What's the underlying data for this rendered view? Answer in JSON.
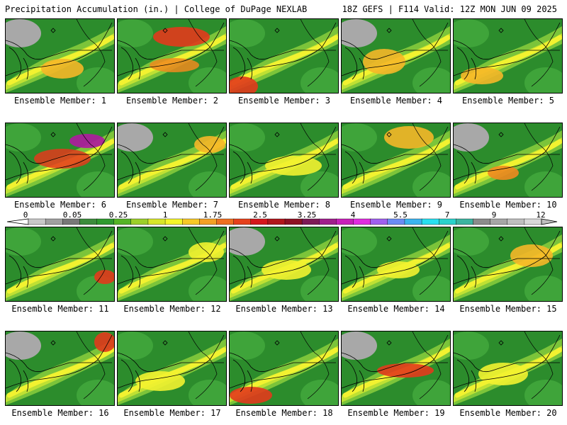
{
  "header": {
    "title_left": "Precipitation Accumulation (in.) | College of DuPage NEXLAB",
    "title_right": "18Z GEFS | F114 Valid: 12Z MON JUN 09 2025"
  },
  "legend": {
    "ticks": [
      "0",
      "0.05",
      "0.25",
      "1",
      "1.75",
      "2.5",
      "3.25",
      "4",
      "5.5",
      "7",
      "9",
      "12"
    ],
    "colors": [
      "#c8c8c8",
      "#a0a0a0",
      "#787878",
      "#3c8c3c",
      "#2f9a2f",
      "#55b427",
      "#9ccf2a",
      "#d8e62a",
      "#f5f52a",
      "#f7c927",
      "#f4a026",
      "#ef6f20",
      "#e6411c",
      "#d4161c",
      "#b0161c",
      "#8e1124",
      "#7e1a57",
      "#a01e8c",
      "#c71fb9",
      "#e02ce0",
      "#a060f0",
      "#6b8cf5",
      "#3cb4f0",
      "#28e0f0",
      "#2ad2cc",
      "#3cb4a0",
      "#8c8c8c",
      "#a6a6a6",
      "#bfbfbf",
      "#d8d8d8"
    ]
  },
  "members": [
    {
      "label": "Ensemble Member: 1"
    },
    {
      "label": "Ensemble Member: 2"
    },
    {
      "label": "Ensemble Member: 3"
    },
    {
      "label": "Ensemble Member: 4"
    },
    {
      "label": "Ensemble Member: 5"
    },
    {
      "label": "Ensemble Member: 6"
    },
    {
      "label": "Ensemble Member: 7"
    },
    {
      "label": "Ensemble Member: 8"
    },
    {
      "label": "Ensemble Member: 9"
    },
    {
      "label": "Ensemble Member: 10"
    },
    {
      "label": "Ensemble Member: 11"
    },
    {
      "label": "Ensemble Member: 12"
    },
    {
      "label": "Ensemble Member: 13"
    },
    {
      "label": "Ensemble Member: 14"
    },
    {
      "label": "Ensemble Member: 15"
    },
    {
      "label": "Ensemble Member: 16"
    },
    {
      "label": "Ensemble Member: 17"
    },
    {
      "label": "Ensemble Member: 18"
    },
    {
      "label": "Ensemble Member: 19"
    },
    {
      "label": "Ensemble Member: 20"
    }
  ],
  "map_colors": {
    "dark_green": "#2c8c2c",
    "green": "#3fa43a",
    "light_green": "#7cc43a",
    "yellow_green": "#bfe033",
    "yellow": "#f2f230",
    "orange": "#f5b728",
    "dark_orange": "#f08a1f",
    "red": "#e23a1c",
    "magenta": "#b01aa0",
    "gray": "#a8a8a8",
    "white": "#f2f2f2"
  }
}
